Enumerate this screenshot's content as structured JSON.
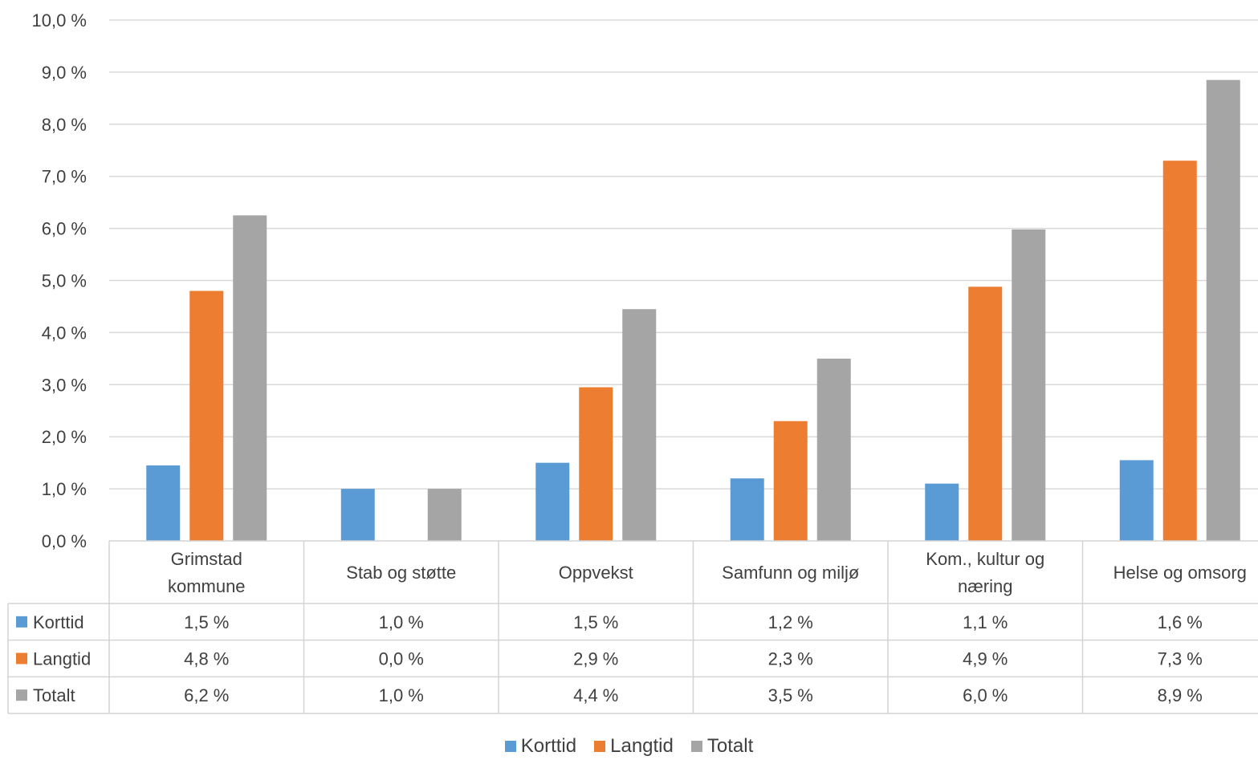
{
  "chart_data": {
    "type": "bar",
    "categories": [
      [
        "Grimstad",
        "kommune"
      ],
      [
        "Stab og støtte"
      ],
      [
        "Oppvekst"
      ],
      [
        "Samfunn og miljø"
      ],
      [
        "Kom., kultur og",
        "næring"
      ],
      [
        "Helse og omsorg"
      ]
    ],
    "series": [
      {
        "name": "Korttid",
        "color": "#5b9bd5",
        "values": [
          1.45,
          1.0,
          1.5,
          1.2,
          1.1,
          1.55
        ],
        "labels": [
          "1,5 %",
          "1,0 %",
          "1,5 %",
          "1,2 %",
          "1,1 %",
          "1,6 %"
        ]
      },
      {
        "name": "Langtid",
        "color": "#ed7d31",
        "values": [
          4.8,
          0.0,
          2.95,
          2.3,
          4.88,
          7.3
        ],
        "labels": [
          "4,8 %",
          "0,0 %",
          "2,9 %",
          "2,3 %",
          "4,9 %",
          "7,3 %"
        ]
      },
      {
        "name": "Totalt",
        "color": "#a5a5a5",
        "values": [
          6.25,
          1.0,
          4.45,
          3.5,
          5.98,
          8.85
        ],
        "labels": [
          "6,2 %",
          "1,0 %",
          "4,4 %",
          "3,5 %",
          "6,0 %",
          "8,9 %"
        ]
      }
    ],
    "yticks": [
      "0,0 %",
      "1,0 %",
      "2,0 %",
      "3,0 %",
      "4,0 %",
      "5,0 %",
      "6,0 %",
      "7,0 %",
      "8,0 %",
      "9,0 %",
      "10,0 %"
    ],
    "ylim": [
      0,
      10
    ],
    "grid": true,
    "legend_position": "bottom",
    "data_table": true
  },
  "legend": {
    "korttid": "Korttid",
    "langtid": "Langtid",
    "totalt": "Totalt"
  }
}
